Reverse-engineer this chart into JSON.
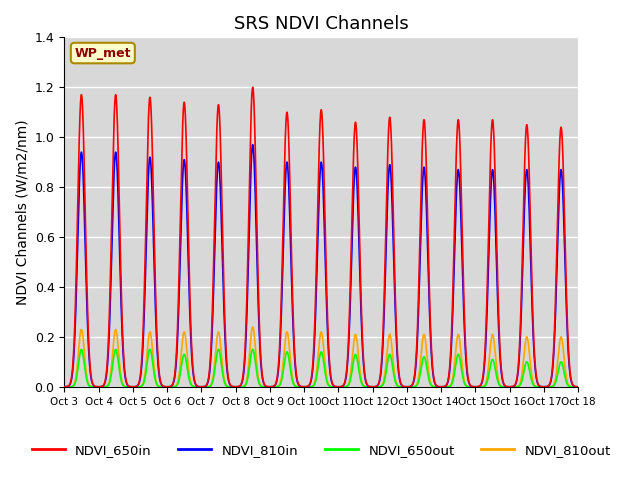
{
  "title": "SRS NDVI Channels",
  "ylabel": "NDVI Channels (W/m2/nm)",
  "ylim": [
    0,
    1.4
  ],
  "background_color": "#d8d8d8",
  "legend_entries": [
    "NDVI_650in",
    "NDVI_810in",
    "NDVI_650out",
    "NDVI_810out"
  ],
  "annotation_text": "WP_met",
  "annotation_bg": "#ffffcc",
  "annotation_border": "#aa8800",
  "xtick_labels": [
    "Oct 3",
    "Oct 4",
    "Oct 5",
    "Oct 6",
    "Oct 7",
    "Oct 8",
    "Oct 9",
    "Oct 10",
    "Oct 11",
    "Oct 12",
    "Oct 13",
    "Oct 14",
    "Oct 15",
    "Oct 16",
    "Oct 17",
    "Oct 18"
  ],
  "num_days": 15,
  "daily_peaks_650in": [
    1.17,
    1.17,
    1.16,
    1.14,
    1.13,
    1.2,
    1.1,
    1.11,
    1.06,
    1.08,
    1.07,
    1.07,
    1.07,
    1.05,
    1.04
  ],
  "daily_peaks_810in": [
    0.94,
    0.94,
    0.92,
    0.91,
    0.9,
    0.97,
    0.9,
    0.9,
    0.88,
    0.89,
    0.88,
    0.87,
    0.87,
    0.87,
    0.87
  ],
  "daily_peaks_650out": [
    0.15,
    0.15,
    0.15,
    0.13,
    0.15,
    0.15,
    0.14,
    0.14,
    0.13,
    0.13,
    0.12,
    0.13,
    0.11,
    0.1,
    0.1
  ],
  "daily_peaks_810out": [
    0.23,
    0.23,
    0.22,
    0.22,
    0.22,
    0.24,
    0.22,
    0.22,
    0.21,
    0.21,
    0.21,
    0.21,
    0.21,
    0.2,
    0.2
  ],
  "grid_color": "white",
  "title_fontsize": 13,
  "label_fontsize": 10
}
